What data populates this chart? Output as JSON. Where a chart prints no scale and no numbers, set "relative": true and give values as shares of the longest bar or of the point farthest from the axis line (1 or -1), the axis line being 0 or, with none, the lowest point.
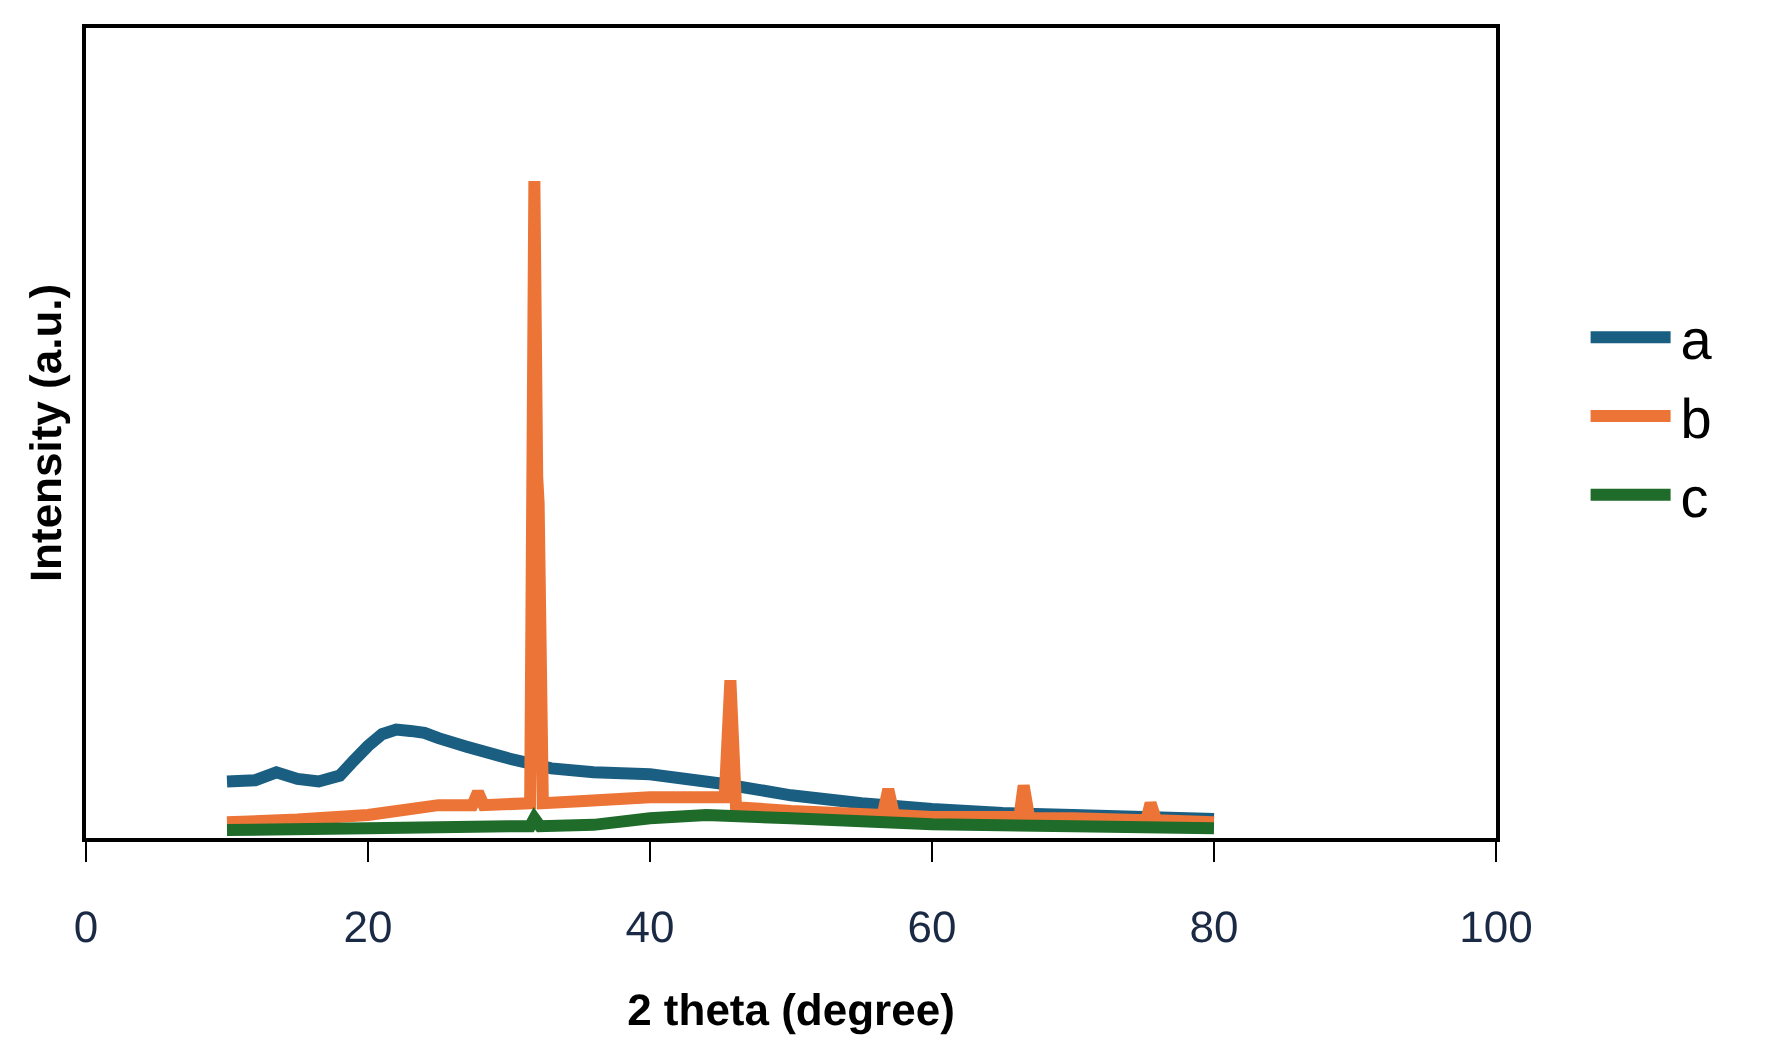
{
  "chart_data": {
    "type": "line",
    "relative": true,
    "xlabel": "2 theta (degree)",
    "ylabel": "Intensity (a.u.)",
    "xlim": [
      0,
      100
    ],
    "xticks": [
      0,
      20,
      40,
      60,
      80,
      100
    ],
    "legend": "right",
    "marker": "none",
    "line_style": "solid",
    "series": [
      {
        "name": "a",
        "color": "#1a5e82",
        "x": [
          10,
          12,
          13.5,
          15,
          16.5,
          18,
          19,
          20,
          21,
          22,
          23,
          24,
          25,
          27,
          30,
          33,
          36,
          40,
          45,
          50,
          55,
          60,
          65,
          70,
          75,
          80
        ],
        "values": [
          0.086,
          0.088,
          0.1,
          0.09,
          0.086,
          0.095,
          0.118,
          0.14,
          0.158,
          0.165,
          0.163,
          0.16,
          0.152,
          0.139,
          0.121,
          0.106,
          0.1,
          0.097,
          0.083,
          0.065,
          0.053,
          0.044,
          0.038,
          0.035,
          0.032,
          0.029
        ]
      },
      {
        "name": "b",
        "color": "#ec7436",
        "x": [
          10,
          15,
          20,
          25,
          27.4,
          27.8,
          28.2,
          31.5,
          31.8,
          32.0,
          32.1,
          32.4,
          35,
          40,
          44,
          45.3,
          45.7,
          46.1,
          50,
          56.5,
          56.9,
          57.3,
          60,
          66.2,
          66.5,
          66.9,
          70,
          75.2,
          75.5,
          75.9,
          80
        ],
        "values": [
          0.024,
          0.028,
          0.035,
          0.05,
          0.05,
          0.07,
          0.05,
          0.053,
          1.0,
          0.55,
          0.51,
          0.053,
          0.056,
          0.062,
          0.062,
          0.062,
          0.24,
          0.047,
          0.041,
          0.035,
          0.074,
          0.035,
          0.032,
          0.032,
          0.08,
          0.03,
          0.03,
          0.027,
          0.053,
          0.027,
          0.024
        ]
      },
      {
        "name": "c",
        "color": "#1e6b2a",
        "x": [
          10,
          20,
          30,
          31.5,
          31.8,
          32.2,
          36,
          40,
          44,
          50,
          60,
          70,
          80
        ],
        "values": [
          0.012,
          0.015,
          0.018,
          0.018,
          0.03,
          0.018,
          0.02,
          0.03,
          0.035,
          0.03,
          0.021,
          0.018,
          0.015
        ]
      }
    ]
  }
}
